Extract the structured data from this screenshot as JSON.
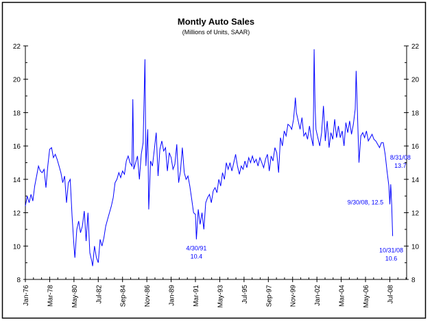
{
  "chart_data": {
    "type": "line",
    "title": "Montly Auto Sales",
    "subtitle": "(Millions of Units, SAAR)",
    "xlabel": "",
    "ylabel": "",
    "ylim": [
      8,
      22
    ],
    "xlim": [
      "1976-01",
      "2010-01"
    ],
    "yticks": [
      "8",
      "10",
      "12",
      "14",
      "16",
      "18",
      "20",
      "22"
    ],
    "xticks": [
      {
        "date": "1976-01",
        "label": "Jan-76"
      },
      {
        "date": "1978-03",
        "label": "Mar-78"
      },
      {
        "date": "1980-05",
        "label": "May-80"
      },
      {
        "date": "1982-07",
        "label": "Jul-82"
      },
      {
        "date": "1984-09",
        "label": "Sep-84"
      },
      {
        "date": "1986-11",
        "label": "Nov-86"
      },
      {
        "date": "1989-01",
        "label": "Jan-89"
      },
      {
        "date": "1991-03",
        "label": "Mar-91"
      },
      {
        "date": "1993-05",
        "label": "May-93"
      },
      {
        "date": "1995-07",
        "label": "Jul-95"
      },
      {
        "date": "1997-09",
        "label": "Sep-97"
      },
      {
        "date": "1999-11",
        "label": "Nov-99"
      },
      {
        "date": "2002-01",
        "label": "Jan-02"
      },
      {
        "date": "2004-03",
        "label": "Mar-04"
      },
      {
        "date": "2006-05",
        "label": "May-06"
      },
      {
        "date": "2008-07",
        "label": "Jul-08"
      }
    ],
    "grid": false,
    "line_color": "#0000ff",
    "series": [
      {
        "points": [
          [
            "1976-01",
            12.4
          ],
          [
            "1976-03",
            13.0
          ],
          [
            "1976-05",
            12.6
          ],
          [
            "1976-07",
            13.1
          ],
          [
            "1976-09",
            12.7
          ],
          [
            "1976-11",
            13.6
          ],
          [
            "1977-01",
            14.2
          ],
          [
            "1977-03",
            14.8
          ],
          [
            "1977-05",
            14.5
          ],
          [
            "1977-07",
            14.4
          ],
          [
            "1977-09",
            14.6
          ],
          [
            "1977-11",
            13.5
          ],
          [
            "1978-01",
            14.8
          ],
          [
            "1978-03",
            15.8
          ],
          [
            "1978-05",
            15.9
          ],
          [
            "1978-07",
            15.3
          ],
          [
            "1978-09",
            15.5
          ],
          [
            "1978-11",
            15.2
          ],
          [
            "1979-01",
            14.8
          ],
          [
            "1979-03",
            14.4
          ],
          [
            "1979-05",
            13.8
          ],
          [
            "1979-07",
            14.2
          ],
          [
            "1979-09",
            12.6
          ],
          [
            "1979-11",
            13.8
          ],
          [
            "1980-01",
            14.0
          ],
          [
            "1980-03",
            11.8
          ],
          [
            "1980-05",
            10.0
          ],
          [
            "1980-06",
            9.3
          ],
          [
            "1980-08",
            11.0
          ],
          [
            "1980-10",
            11.5
          ],
          [
            "1980-12",
            10.8
          ],
          [
            "1981-02",
            11.2
          ],
          [
            "1981-04",
            12.1
          ],
          [
            "1981-06",
            10.3
          ],
          [
            "1981-08",
            12.0
          ],
          [
            "1981-10",
            9.6
          ],
          [
            "1981-12",
            9.1
          ],
          [
            "1982-01",
            8.8
          ],
          [
            "1982-03",
            10.0
          ],
          [
            "1982-05",
            9.3
          ],
          [
            "1982-07",
            9.0
          ],
          [
            "1982-09",
            10.4
          ],
          [
            "1982-11",
            10.0
          ],
          [
            "1983-01",
            10.5
          ],
          [
            "1983-03",
            11.2
          ],
          [
            "1983-05",
            11.6
          ],
          [
            "1983-07",
            12.0
          ],
          [
            "1983-09",
            12.4
          ],
          [
            "1983-11",
            12.9
          ],
          [
            "1984-01",
            13.8
          ],
          [
            "1984-03",
            14.0
          ],
          [
            "1984-05",
            14.4
          ],
          [
            "1984-07",
            14.1
          ],
          [
            "1984-09",
            14.5
          ],
          [
            "1984-11",
            14.3
          ],
          [
            "1985-01",
            15.1
          ],
          [
            "1985-03",
            15.4
          ],
          [
            "1985-05",
            15.0
          ],
          [
            "1985-07",
            14.8
          ],
          [
            "1985-08",
            18.8
          ],
          [
            "1985-09",
            14.6
          ],
          [
            "1985-11",
            15.0
          ],
          [
            "1986-01",
            15.4
          ],
          [
            "1986-03",
            14.0
          ],
          [
            "1986-05",
            15.5
          ],
          [
            "1986-07",
            16.2
          ],
          [
            "1986-09",
            21.2
          ],
          [
            "1986-10",
            14.8
          ],
          [
            "1986-12",
            17.0
          ],
          [
            "1987-01",
            12.2
          ],
          [
            "1987-03",
            15.1
          ],
          [
            "1987-05",
            14.8
          ],
          [
            "1987-07",
            15.8
          ],
          [
            "1987-09",
            16.8
          ],
          [
            "1987-11",
            14.2
          ],
          [
            "1988-01",
            15.8
          ],
          [
            "1988-03",
            16.3
          ],
          [
            "1988-05",
            15.7
          ],
          [
            "1988-07",
            15.9
          ],
          [
            "1988-09",
            14.5
          ],
          [
            "1988-11",
            15.6
          ],
          [
            "1989-01",
            15.3
          ],
          [
            "1989-03",
            14.6
          ],
          [
            "1989-05",
            14.9
          ],
          [
            "1989-07",
            16.1
          ],
          [
            "1989-09",
            13.8
          ],
          [
            "1989-11",
            14.5
          ],
          [
            "1990-01",
            15.9
          ],
          [
            "1990-03",
            14.4
          ],
          [
            "1990-05",
            14.0
          ],
          [
            "1990-07",
            14.2
          ],
          [
            "1990-09",
            13.6
          ],
          [
            "1990-11",
            12.8
          ],
          [
            "1991-01",
            12.0
          ],
          [
            "1991-03",
            11.9
          ],
          [
            "1991-04",
            10.4
          ],
          [
            "1991-06",
            12.2
          ],
          [
            "1991-08",
            11.3
          ],
          [
            "1991-10",
            12.0
          ],
          [
            "1991-12",
            11.0
          ],
          [
            "1992-02",
            12.6
          ],
          [
            "1992-04",
            12.9
          ],
          [
            "1992-06",
            13.1
          ],
          [
            "1992-08",
            12.6
          ],
          [
            "1992-10",
            13.3
          ],
          [
            "1992-12",
            13.5
          ],
          [
            "1993-02",
            13.2
          ],
          [
            "1993-04",
            14.0
          ],
          [
            "1993-06",
            13.6
          ],
          [
            "1993-08",
            14.4
          ],
          [
            "1993-10",
            14.0
          ],
          [
            "1993-12",
            15.0
          ],
          [
            "1994-02",
            14.6
          ],
          [
            "1994-04",
            15.0
          ],
          [
            "1994-06",
            14.5
          ],
          [
            "1994-08",
            15.0
          ],
          [
            "1994-10",
            15.5
          ],
          [
            "1994-12",
            14.8
          ],
          [
            "1995-02",
            14.3
          ],
          [
            "1995-04",
            14.8
          ],
          [
            "1995-06",
            14.6
          ],
          [
            "1995-08",
            15.1
          ],
          [
            "1995-10",
            14.7
          ],
          [
            "1995-12",
            15.3
          ],
          [
            "1996-02",
            15.0
          ],
          [
            "1996-04",
            15.4
          ],
          [
            "1996-06",
            15.0
          ],
          [
            "1996-08",
            15.2
          ],
          [
            "1996-10",
            14.8
          ],
          [
            "1996-12",
            15.3
          ],
          [
            "1997-02",
            15.0
          ],
          [
            "1997-04",
            14.7
          ],
          [
            "1997-06",
            15.2
          ],
          [
            "1997-08",
            15.5
          ],
          [
            "1997-10",
            14.5
          ],
          [
            "1997-12",
            15.4
          ],
          [
            "1998-02",
            15.1
          ],
          [
            "1998-04",
            15.9
          ],
          [
            "1998-06",
            15.6
          ],
          [
            "1998-08",
            14.4
          ],
          [
            "1998-10",
            16.5
          ],
          [
            "1998-12",
            16.0
          ],
          [
            "1999-02",
            16.9
          ],
          [
            "1999-04",
            16.6
          ],
          [
            "1999-06",
            17.3
          ],
          [
            "1999-08",
            17.2
          ],
          [
            "1999-10",
            17.0
          ],
          [
            "1999-12",
            17.6
          ],
          [
            "2000-02",
            18.9
          ],
          [
            "2000-03",
            18.0
          ],
          [
            "2000-05",
            17.5
          ],
          [
            "2000-07",
            17.0
          ],
          [
            "2000-09",
            17.7
          ],
          [
            "2000-11",
            16.6
          ],
          [
            "2001-01",
            16.8
          ],
          [
            "2001-03",
            16.4
          ],
          [
            "2001-05",
            17.2
          ],
          [
            "2001-07",
            16.5
          ],
          [
            "2001-09",
            16.0
          ],
          [
            "2001-10",
            21.8
          ],
          [
            "2001-11",
            18.4
          ],
          [
            "2001-12",
            17.0
          ],
          [
            "2002-02",
            16.5
          ],
          [
            "2002-04",
            16.0
          ],
          [
            "2002-06",
            16.8
          ],
          [
            "2002-08",
            18.4
          ],
          [
            "2002-10",
            16.3
          ],
          [
            "2002-12",
            17.5
          ],
          [
            "2003-02",
            15.9
          ],
          [
            "2003-04",
            16.8
          ],
          [
            "2003-06",
            16.4
          ],
          [
            "2003-08",
            17.6
          ],
          [
            "2003-10",
            16.5
          ],
          [
            "2003-12",
            17.2
          ],
          [
            "2004-02",
            16.5
          ],
          [
            "2004-04",
            16.9
          ],
          [
            "2004-06",
            16.0
          ],
          [
            "2004-08",
            17.4
          ],
          [
            "2004-10",
            16.8
          ],
          [
            "2004-12",
            17.5
          ],
          [
            "2005-02",
            16.7
          ],
          [
            "2005-04",
            17.3
          ],
          [
            "2005-06",
            18.2
          ],
          [
            "2005-07",
            20.5
          ],
          [
            "2005-08",
            18.6
          ],
          [
            "2005-10",
            15.0
          ],
          [
            "2005-12",
            16.6
          ],
          [
            "2006-02",
            16.8
          ],
          [
            "2006-04",
            16.5
          ],
          [
            "2006-06",
            16.9
          ],
          [
            "2006-08",
            16.3
          ],
          [
            "2006-10",
            16.5
          ],
          [
            "2006-12",
            16.7
          ],
          [
            "2007-02",
            16.4
          ],
          [
            "2007-04",
            16.3
          ],
          [
            "2007-06",
            16.1
          ],
          [
            "2007-08",
            15.9
          ],
          [
            "2007-10",
            16.2
          ],
          [
            "2007-12",
            16.2
          ],
          [
            "2008-02",
            15.5
          ],
          [
            "2008-04",
            14.5
          ],
          [
            "2008-06",
            13.6
          ],
          [
            "2008-07",
            12.5
          ],
          [
            "2008-08",
            13.7
          ],
          [
            "2008-09",
            12.5
          ],
          [
            "2008-10",
            10.6
          ]
        ]
      }
    ],
    "annotations": [
      {
        "date": "1991-04",
        "value": 10.4,
        "lines": [
          "4/30/91",
          "10.4"
        ]
      },
      {
        "date": "2008-09",
        "value": 12.5,
        "lines": [
          "9/30/08, 12.5"
        ]
      },
      {
        "date": "2008-08",
        "value": 13.7,
        "lines": [
          "8/31/08",
          "13.7"
        ]
      },
      {
        "date": "2008-10",
        "value": 10.6,
        "lines": [
          "10/31/08",
          "10.6"
        ]
      }
    ]
  }
}
